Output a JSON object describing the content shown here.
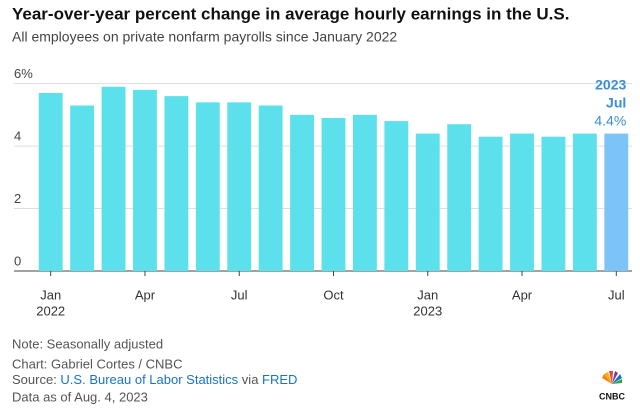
{
  "chart_data": {
    "type": "bar",
    "title": "Year-over-year percent change in average hourly earnings in the U.S.",
    "subtitle": "All employees on private nonfarm payrolls since January 2022",
    "categories": [
      "Jan",
      null,
      null,
      "Apr",
      null,
      null,
      "Jul",
      null,
      null,
      "Oct",
      null,
      null,
      "Jan",
      null,
      null,
      "Apr",
      null,
      null,
      "Jul"
    ],
    "category_years": [
      "2022",
      null,
      null,
      null,
      null,
      null,
      null,
      null,
      null,
      null,
      null,
      null,
      "2023",
      null,
      null,
      null,
      null,
      null,
      null
    ],
    "values": [
      5.7,
      5.3,
      5.9,
      5.8,
      5.6,
      5.4,
      5.4,
      5.3,
      5.0,
      4.9,
      5.0,
      4.8,
      4.4,
      4.7,
      4.3,
      4.4,
      4.3,
      4.4,
      4.4
    ],
    "colors": [
      "#5ce1ec",
      "#5ce1ec",
      "#5ce1ec",
      "#5ce1ec",
      "#5ce1ec",
      "#5ce1ec",
      "#5ce1ec",
      "#5ce1ec",
      "#5ce1ec",
      "#5ce1ec",
      "#5ce1ec",
      "#5ce1ec",
      "#5ce1ec",
      "#5ce1ec",
      "#5ce1ec",
      "#5ce1ec",
      "#5ce1ec",
      "#5ce1ec",
      "#7cc4f7"
    ],
    "annotation": [
      "2023",
      "Jul"
    ],
    "value_labels": [
      null,
      null,
      null,
      null,
      null,
      null,
      null,
      null,
      null,
      null,
      null,
      null,
      null,
      null,
      null,
      null,
      null,
      null,
      "4.4%"
    ],
    "ylim": [
      0,
      6.5
    ],
    "yticks": [
      0,
      2,
      4,
      {
        "value": 6,
        "label": "6%"
      }
    ],
    "grid": true
  },
  "footer": {
    "note": "Note: Seasonally adjusted",
    "credit": "Chart: Gabriel Cortes / CNBC",
    "source": [
      "Source: ",
      "U.S. Bureau of Labor Statistics",
      " via ",
      "FRED"
    ],
    "date": "Data as of Aug. 4, 2023",
    "logo": "CNBC"
  }
}
